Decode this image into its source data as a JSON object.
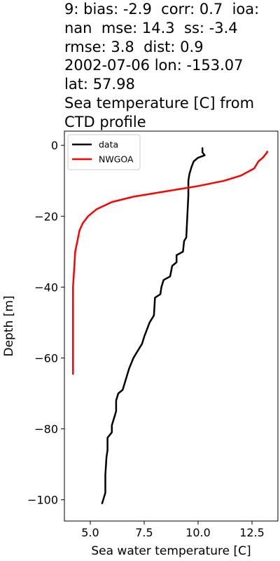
{
  "title_lines": [
    "9: bias: -2.9  corr: 0.7  ioa:",
    "nan  mse: 14.3  ss: -3.4",
    "rmse: 3.8  dist: 0.9",
    "2002-07-06 lon: -153.07",
    "lat: 57.98",
    "Sea temperature [C] from",
    "CTD profile"
  ],
  "chart_data": {
    "type": "line",
    "title": "9: bias: -2.9  corr: 0.7  ioa: nan  mse: 14.3  ss: -3.4  rmse: 3.8  dist: 0.9  2002-07-06 lon: -153.07  lat: 57.98  Sea temperature [C] from CTD profile",
    "xlabel": "Sea water temperature [C]",
    "ylabel": "Depth [m]",
    "xlim": [
      3.8,
      13.7
    ],
    "ylim": [
      -106,
      4
    ],
    "xticks": [
      5.0,
      7.5,
      10.0,
      12.5
    ],
    "xtick_labels": [
      "5.0",
      "7.5",
      "10.0",
      "12.5"
    ],
    "yticks": [
      0,
      -20,
      -40,
      -60,
      -80,
      -100
    ],
    "ytick_labels": [
      "0",
      "−20",
      "−40",
      "−60",
      "−80",
      "−100"
    ],
    "legend_position": "upper-left",
    "series": [
      {
        "name": "data",
        "color": "#000000",
        "points": [
          [
            10.2,
            -0.8
          ],
          [
            10.2,
            -2.0
          ],
          [
            10.3,
            -2.8
          ],
          [
            10.0,
            -3.5
          ],
          [
            9.8,
            -4.5
          ],
          [
            9.7,
            -6.0
          ],
          [
            9.6,
            -8.0
          ],
          [
            9.55,
            -10.0
          ],
          [
            9.55,
            -14.0
          ],
          [
            9.5,
            -20.0
          ],
          [
            9.45,
            -26.0
          ],
          [
            9.35,
            -27.0
          ],
          [
            9.3,
            -30.0
          ],
          [
            9.0,
            -31.0
          ],
          [
            9.0,
            -33.0
          ],
          [
            8.8,
            -34.0
          ],
          [
            8.7,
            -37.0
          ],
          [
            8.4,
            -38.0
          ],
          [
            8.3,
            -40.0
          ],
          [
            8.25,
            -42.0
          ],
          [
            8.0,
            -43.0
          ],
          [
            7.95,
            -48.0
          ],
          [
            7.75,
            -50.0
          ],
          [
            7.5,
            -54.0
          ],
          [
            7.4,
            -56.0
          ],
          [
            7.2,
            -58.0
          ],
          [
            7.0,
            -60.0
          ],
          [
            6.8,
            -63.0
          ],
          [
            6.6,
            -67.0
          ],
          [
            6.5,
            -69.0
          ],
          [
            6.3,
            -70.0
          ],
          [
            6.2,
            -72.0
          ],
          [
            6.2,
            -75.0
          ],
          [
            6.1,
            -77.0
          ],
          [
            6.0,
            -79.0
          ],
          [
            6.0,
            -81.0
          ],
          [
            5.8,
            -82.5
          ],
          [
            5.8,
            -86.0
          ],
          [
            5.75,
            -88.0
          ],
          [
            5.7,
            -93.0
          ],
          [
            5.7,
            -98.0
          ],
          [
            5.6,
            -100.0
          ],
          [
            5.55,
            -101.0
          ]
        ]
      },
      {
        "name": "NWGOA",
        "color": "#ff0000",
        "points": [
          [
            13.2,
            -1.8
          ],
          [
            13.2,
            -2.0
          ],
          [
            13.0,
            -3.5
          ],
          [
            12.8,
            -4.5
          ],
          [
            12.6,
            -6.5
          ],
          [
            12.0,
            -8.5
          ],
          [
            11.2,
            -10.0
          ],
          [
            10.0,
            -11.5
          ],
          [
            8.5,
            -13.0
          ],
          [
            7.0,
            -14.5
          ],
          [
            6.0,
            -16.0
          ],
          [
            5.3,
            -18.0
          ],
          [
            4.9,
            -20.0
          ],
          [
            4.65,
            -22.0
          ],
          [
            4.5,
            -24.0
          ],
          [
            4.4,
            -27.0
          ],
          [
            4.3,
            -30.0
          ],
          [
            4.25,
            -35.0
          ],
          [
            4.2,
            -40.0
          ],
          [
            4.2,
            -50.0
          ],
          [
            4.2,
            -64.5
          ]
        ]
      }
    ]
  }
}
